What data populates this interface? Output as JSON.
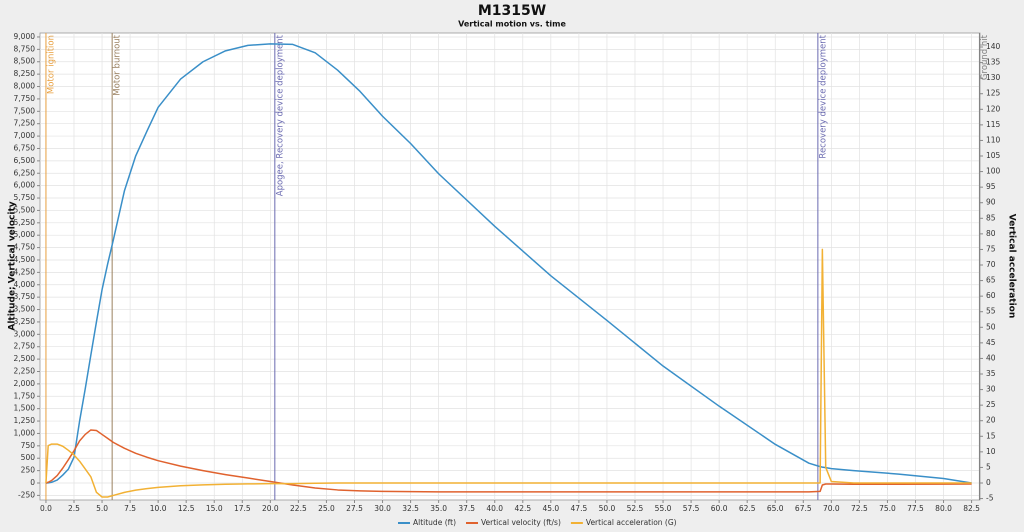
{
  "chart_data": {
    "type": "line",
    "title": "M1315W",
    "subtitle": "Vertical motion vs. time",
    "y_label": "Altitude; Vertical velocity",
    "y2_label": "Vertical acceleration",
    "grid": true,
    "xlim": [
      -0.53,
      83.25
    ],
    "ylim": [
      -343,
      9080
    ],
    "y2lim": [
      -5.46,
      144.5
    ],
    "xticks": [
      {
        "value": 0,
        "label": "0.0"
      },
      2.5,
      {
        "value": 5,
        "label": "5.0"
      },
      7.5,
      {
        "value": 10,
        "label": "10.0"
      },
      12.5,
      {
        "value": 15,
        "label": "15.0"
      },
      17.5,
      {
        "value": 20,
        "label": "20.0"
      },
      22.5,
      {
        "value": 25,
        "label": "25.0"
      },
      27.5,
      {
        "value": 30,
        "label": "30.0"
      },
      32.5,
      {
        "value": 35,
        "label": "35.0"
      },
      37.5,
      {
        "value": 40,
        "label": "40.0"
      },
      42.5,
      {
        "value": 45,
        "label": "45.0"
      },
      47.5,
      {
        "value": 50,
        "label": "50.0"
      },
      52.5,
      {
        "value": 55,
        "label": "55.0"
      },
      57.5,
      {
        "value": 60,
        "label": "60.0"
      },
      62.5,
      {
        "value": 65,
        "label": "65.0"
      },
      67.5,
      {
        "value": 70,
        "label": "70.0"
      },
      72.5,
      {
        "value": 75,
        "label": "75.0"
      },
      77.5,
      {
        "value": 80,
        "label": "80.0"
      },
      82.5
    ],
    "yticks": [
      -250,
      0,
      250,
      500,
      750,
      {
        "value": 1000,
        "label": "1,000"
      },
      {
        "value": 1250,
        "label": "1,250"
      },
      {
        "value": 1500,
        "label": "1,500"
      },
      {
        "value": 1750,
        "label": "1,750"
      },
      {
        "value": 2000,
        "label": "2,000"
      },
      {
        "value": 2250,
        "label": "2,250"
      },
      {
        "value": 2500,
        "label": "2,500"
      },
      {
        "value": 2750,
        "label": "2,750"
      },
      {
        "value": 3000,
        "label": "3,000"
      },
      {
        "value": 3250,
        "label": "3,250"
      },
      {
        "value": 3500,
        "label": "3,500"
      },
      {
        "value": 3750,
        "label": "3,750"
      },
      {
        "value": 4000,
        "label": "4,000"
      },
      {
        "value": 4250,
        "label": "4,250"
      },
      {
        "value": 4500,
        "label": "4,500"
      },
      {
        "value": 4750,
        "label": "4,750"
      },
      {
        "value": 5000,
        "label": "5,000"
      },
      {
        "value": 5250,
        "label": "5,250"
      },
      {
        "value": 5500,
        "label": "5,500"
      },
      {
        "value": 5750,
        "label": "5,750"
      },
      {
        "value": 6000,
        "label": "6,000"
      },
      {
        "value": 6250,
        "label": "6,250"
      },
      {
        "value": 6500,
        "label": "6,500"
      },
      {
        "value": 6750,
        "label": "6,750"
      },
      {
        "value": 7000,
        "label": "7,000"
      },
      {
        "value": 7250,
        "label": "7,250"
      },
      {
        "value": 7500,
        "label": "7,500"
      },
      {
        "value": 7750,
        "label": "7,750"
      },
      {
        "value": 8000,
        "label": "8,000"
      },
      {
        "value": 8250,
        "label": "8,250"
      },
      {
        "value": 8500,
        "label": "8,500"
      },
      {
        "value": 8750,
        "label": "8,750"
      },
      {
        "value": 9000,
        "label": "9,000"
      }
    ],
    "y2ticks": [
      -5,
      0,
      5,
      10,
      15,
      20,
      25,
      30,
      35,
      40,
      45,
      50,
      55,
      60,
      65,
      70,
      75,
      80,
      85,
      90,
      95,
      100,
      105,
      110,
      115,
      120,
      125,
      130,
      135,
      140
    ],
    "x": [
      0,
      0.2,
      0.5,
      1,
      1.5,
      2,
      2.5,
      3,
      3.5,
      4,
      4.5,
      5,
      5.5,
      6,
      7,
      8,
      9,
      10,
      12,
      14,
      16,
      18,
      20,
      22,
      24,
      26,
      28,
      30,
      32.5,
      35,
      40,
      45,
      50,
      55,
      60,
      65,
      68,
      69,
      69.2,
      69.5,
      70,
      72,
      76,
      80,
      82.5
    ],
    "series": [
      {
        "name": "Altitude (ft)",
        "color": "#3a8fc8",
        "values": [
          0,
          2,
          15,
          60,
          160,
          280,
          520,
          1250,
          1900,
          2580,
          3250,
          3900,
          4420,
          4900,
          5900,
          6600,
          7100,
          7580,
          8150,
          8500,
          8720,
          8830,
          8860,
          8850,
          8680,
          8330,
          7900,
          7400,
          6850,
          6240,
          5180,
          4180,
          3280,
          2360,
          1550,
          780,
          400,
          330,
          320,
          310,
          290,
          250,
          180,
          90,
          0
        ]
      },
      {
        "name": "Vertical velocity (ft/s)",
        "color": "#e0622e",
        "values": [
          0,
          15,
          50,
          150,
          300,
          470,
          650,
          850,
          980,
          1070,
          1060,
          980,
          900,
          820,
          700,
          600,
          520,
          450,
          340,
          250,
          170,
          100,
          30,
          -40,
          -100,
          -140,
          -160,
          -170,
          -175,
          -180,
          -180,
          -180,
          -180,
          -180,
          -180,
          -180,
          -180,
          -170,
          -40,
          -20,
          -20,
          -25,
          -25,
          -22,
          -20
        ]
      },
      {
        "name": "Vertical acceleration (G)",
        "color": "#f2b134",
        "axis": "y2",
        "values": [
          0,
          12,
          12.5,
          12.5,
          11.8,
          10.5,
          9,
          7,
          4.5,
          2,
          -3,
          -4.5,
          -4.5,
          -4,
          -3,
          -2.3,
          -1.8,
          -1.4,
          -0.9,
          -0.6,
          -0.4,
          -0.3,
          -0.2,
          -0.2,
          -0.1,
          0,
          0,
          0,
          0,
          0,
          0,
          0,
          0,
          0,
          0,
          0,
          0,
          0,
          75,
          5,
          0.5,
          0,
          0,
          0,
          0
        ]
      }
    ],
    "events": [
      {
        "label": "Motor ignition",
        "x": 0,
        "color": "#e8a040"
      },
      {
        "label": "Motor burnout",
        "x": 5.9,
        "color": "#9a8060"
      },
      {
        "label": "Apogee, Recovery device deployment",
        "x": 20.4,
        "color": "#6a6ab0"
      },
      {
        "label": "Recovery device deployment",
        "x": 68.8,
        "color": "#6a6ab0"
      },
      {
        "label": "Ground hit",
        "x": 83.2,
        "color": "#808080"
      }
    ]
  }
}
